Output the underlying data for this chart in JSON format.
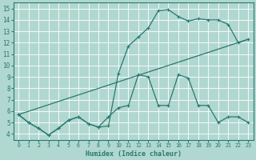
{
  "bg_color": "#b0d8d0",
  "grid_color": "#c8e8e0",
  "line_color": "#2a7870",
  "xlim": [
    -0.5,
    23.5
  ],
  "ylim": [
    3.5,
    15.5
  ],
  "xticks": [
    0,
    1,
    2,
    3,
    4,
    5,
    6,
    7,
    8,
    9,
    10,
    11,
    12,
    13,
    14,
    15,
    16,
    17,
    18,
    19,
    20,
    21,
    22,
    23
  ],
  "yticks": [
    4,
    5,
    6,
    7,
    8,
    9,
    10,
    11,
    12,
    13,
    14,
    15
  ],
  "xlabel": "Humidex (Indice chaleur)",
  "line1_x": [
    0,
    1,
    2,
    3,
    4,
    5,
    6,
    7,
    8,
    9,
    10,
    11,
    12,
    13,
    14,
    15,
    16,
    17,
    18,
    19,
    20,
    21,
    22,
    23
  ],
  "line1_y": [
    5.7,
    5.0,
    4.5,
    3.9,
    4.5,
    5.2,
    5.5,
    4.9,
    4.6,
    4.7,
    9.3,
    11.7,
    12.5,
    13.3,
    14.8,
    14.9,
    14.3,
    13.9,
    14.1,
    14.0,
    14.0,
    13.6,
    12.0,
    12.3
  ],
  "line2_x": [
    0,
    1,
    2,
    3,
    4,
    5,
    6,
    7,
    8,
    9,
    10,
    11,
    12,
    13,
    14,
    15,
    16,
    17,
    18,
    19,
    20,
    21,
    22,
    23
  ],
  "line2_y": [
    5.7,
    5.0,
    4.5,
    3.9,
    4.5,
    5.2,
    5.5,
    4.9,
    4.6,
    5.5,
    6.3,
    6.5,
    9.2,
    9.0,
    6.5,
    6.5,
    9.2,
    8.9,
    6.5,
    6.5,
    5.0,
    5.5,
    5.5,
    5.0
  ],
  "line3_x": [
    0,
    23
  ],
  "line3_y": [
    5.7,
    12.3
  ]
}
